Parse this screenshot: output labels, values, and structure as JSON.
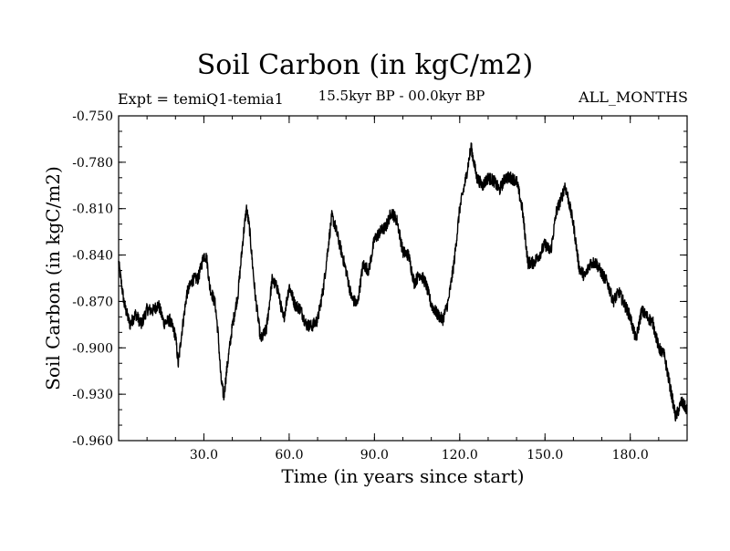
{
  "colors": {
    "background": "#ffffff",
    "line": "#000000",
    "axes": "#000000"
  },
  "chart_data": {
    "type": "line",
    "title": "Soil Carbon (in kgC/m2)",
    "subtitle_left": "Expt = temiQ1-temia1",
    "subtitle_center": "15.5kyr BP - 00.0kyr BP",
    "subtitle_right": "ALL_MONTHS",
    "xlabel": "Time (in years since start)",
    "ylabel": "Soil Carbon (in kgC/m2)",
    "xlim": [
      0,
      200
    ],
    "ylim": [
      -0.96,
      -0.75
    ],
    "x_ticks": [
      30,
      60,
      90,
      120,
      150,
      180
    ],
    "x_tick_labels": [
      "30.0",
      "60.0",
      "90.0",
      "120.0",
      "150.0",
      "180.0"
    ],
    "y_ticks": [
      -0.75,
      -0.78,
      -0.81,
      -0.84,
      -0.87,
      -0.9,
      -0.93,
      -0.96
    ],
    "y_tick_labels": [
      "-0.750",
      "-0.780",
      "-0.810",
      "-0.840",
      "-0.870",
      "-0.900",
      "-0.930",
      "-0.960"
    ],
    "grid": false,
    "series": [
      {
        "name": "Soil Carbon",
        "x": [
          0,
          2,
          4,
          6,
          8,
          10,
          12,
          14,
          16,
          18,
          20,
          21,
          22,
          24,
          26,
          28,
          30,
          31,
          32,
          34,
          35,
          36,
          37,
          38,
          40,
          42,
          44,
          45,
          46,
          48,
          50,
          52,
          54,
          56,
          58,
          60,
          62,
          64,
          66,
          68,
          70,
          72,
          74,
          75,
          76,
          78,
          80,
          82,
          84,
          86,
          88,
          90,
          92,
          94,
          96,
          98,
          100,
          102,
          104,
          106,
          108,
          110,
          112,
          114,
          116,
          118,
          120,
          122,
          124,
          126,
          128,
          130,
          132,
          134,
          136,
          138,
          140,
          142,
          144,
          146,
          148,
          150,
          152,
          154,
          156,
          157,
          158,
          160,
          162,
          164,
          166,
          168,
          170,
          172,
          174,
          176,
          178,
          180,
          182,
          184,
          186,
          188,
          190,
          192,
          194,
          196,
          198,
          200
        ],
        "y": [
          -0.845,
          -0.872,
          -0.885,
          -0.878,
          -0.885,
          -0.875,
          -0.876,
          -0.872,
          -0.884,
          -0.882,
          -0.892,
          -0.911,
          -0.893,
          -0.865,
          -0.856,
          -0.855,
          -0.84,
          -0.842,
          -0.86,
          -0.872,
          -0.891,
          -0.92,
          -0.932,
          -0.915,
          -0.886,
          -0.865,
          -0.825,
          -0.81,
          -0.822,
          -0.865,
          -0.895,
          -0.888,
          -0.856,
          -0.862,
          -0.882,
          -0.86,
          -0.872,
          -0.875,
          -0.885,
          -0.886,
          -0.882,
          -0.862,
          -0.83,
          -0.815,
          -0.82,
          -0.835,
          -0.85,
          -0.868,
          -0.872,
          -0.846,
          -0.85,
          -0.83,
          -0.825,
          -0.822,
          -0.812,
          -0.818,
          -0.838,
          -0.84,
          -0.858,
          -0.852,
          -0.858,
          -0.872,
          -0.878,
          -0.882,
          -0.87,
          -0.845,
          -0.81,
          -0.792,
          -0.77,
          -0.79,
          -0.795,
          -0.79,
          -0.792,
          -0.798,
          -0.79,
          -0.79,
          -0.792,
          -0.81,
          -0.845,
          -0.845,
          -0.84,
          -0.833,
          -0.838,
          -0.812,
          -0.802,
          -0.795,
          -0.802,
          -0.82,
          -0.848,
          -0.854,
          -0.845,
          -0.845,
          -0.852,
          -0.858,
          -0.87,
          -0.864,
          -0.872,
          -0.88,
          -0.895,
          -0.876,
          -0.88,
          -0.884,
          -0.9,
          -0.905,
          -0.925,
          -0.945,
          -0.935,
          -0.94
        ]
      }
    ]
  }
}
